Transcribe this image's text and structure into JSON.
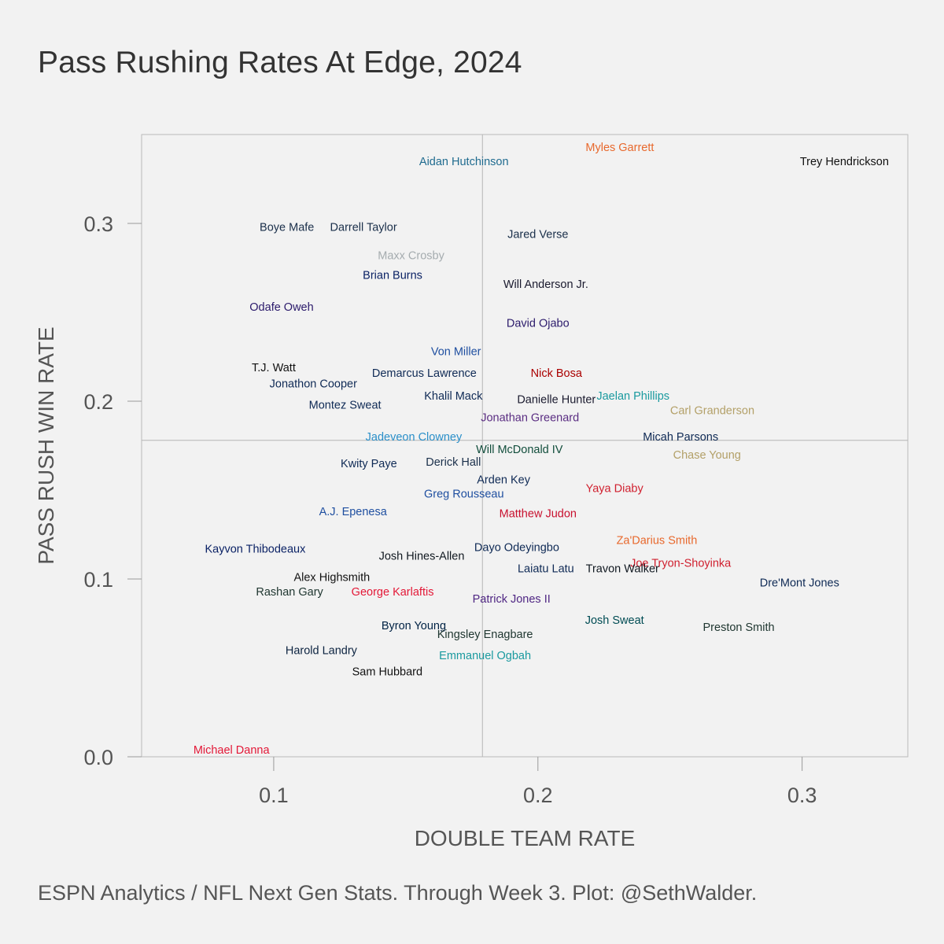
{
  "title": "Pass Rushing Rates At Edge, 2024",
  "caption": "ESPN Analytics / NFL Next Gen Stats. Through Week 3. Plot: @SethWalder.",
  "chart_data": {
    "type": "scatter",
    "title": "Pass Rushing Rates At Edge, 2024",
    "xlabel": "DOUBLE TEAM RATE",
    "ylabel": "PASS RUSH WIN RATE",
    "xlim": [
      0.05,
      0.34
    ],
    "ylim": [
      0.0,
      0.35
    ],
    "xticks": [
      0.1,
      0.2,
      0.3
    ],
    "xtick_labels": [
      "0.1",
      "0.2",
      "0.3"
    ],
    "yticks": [
      0.0,
      0.1,
      0.2,
      0.3
    ],
    "ytick_labels": [
      "0.0",
      "0.1",
      "0.2",
      "0.3"
    ],
    "reference_lines": {
      "x": 0.179,
      "y": 0.178
    },
    "grid": false,
    "points": [
      {
        "label": "Myles Garrett",
        "x": 0.231,
        "y": 0.343,
        "color": "#e8692d"
      },
      {
        "label": "Trey Hendrickson",
        "x": 0.316,
        "y": 0.335,
        "color": "#111111"
      },
      {
        "label": "Aidan Hutchinson",
        "x": 0.172,
        "y": 0.335,
        "color": "#1f6b8f"
      },
      {
        "label": "Boye Mafe",
        "x": 0.105,
        "y": 0.298,
        "color": "#1a2f4a"
      },
      {
        "label": "Darrell Taylor",
        "x": 0.134,
        "y": 0.298,
        "color": "#1a2f4a"
      },
      {
        "label": "Jared Verse",
        "x": 0.2,
        "y": 0.294,
        "color": "#1a2f4a"
      },
      {
        "label": "Maxx Crosby",
        "x": 0.152,
        "y": 0.282,
        "color": "#a5acaf"
      },
      {
        "label": "Brian Burns",
        "x": 0.145,
        "y": 0.271,
        "color": "#0b2265"
      },
      {
        "label": "Will Anderson Jr.",
        "x": 0.203,
        "y": 0.266,
        "color": "#1a1a2e"
      },
      {
        "label": "Odafe Oweh",
        "x": 0.103,
        "y": 0.253,
        "color": "#2b1a6b"
      },
      {
        "label": "David Ojabo",
        "x": 0.2,
        "y": 0.244,
        "color": "#2b1a6b"
      },
      {
        "label": "Von Miller",
        "x": 0.169,
        "y": 0.228,
        "color": "#1f4fa0"
      },
      {
        "label": "T.J. Watt",
        "x": 0.1,
        "y": 0.219,
        "color": "#111111"
      },
      {
        "label": "Demarcus Lawrence",
        "x": 0.157,
        "y": 0.216,
        "color": "#0f2a55"
      },
      {
        "label": "Nick Bosa",
        "x": 0.207,
        "y": 0.216,
        "color": "#aa0000"
      },
      {
        "label": "Jonathon Cooper",
        "x": 0.115,
        "y": 0.21,
        "color": "#0f2a55"
      },
      {
        "label": "Khalil Mack",
        "x": 0.168,
        "y": 0.203,
        "color": "#0f2a55"
      },
      {
        "label": "Danielle Hunter",
        "x": 0.207,
        "y": 0.201,
        "color": "#1a1a2e"
      },
      {
        "label": "Jaelan Phillips",
        "x": 0.236,
        "y": 0.203,
        "color": "#1a9a9f"
      },
      {
        "label": "Montez Sweat",
        "x": 0.127,
        "y": 0.198,
        "color": "#0f2a55"
      },
      {
        "label": "Carl Granderson",
        "x": 0.266,
        "y": 0.195,
        "color": "#b3a068"
      },
      {
        "label": "Jonathan Greenard",
        "x": 0.197,
        "y": 0.191,
        "color": "#5a2d82"
      },
      {
        "label": "Micah Parsons",
        "x": 0.254,
        "y": 0.18,
        "color": "#0f2a55"
      },
      {
        "label": "Jadeveon Clowney",
        "x": 0.153,
        "y": 0.18,
        "color": "#2a8fc9"
      },
      {
        "label": "Will McDonald IV",
        "x": 0.193,
        "y": 0.173,
        "color": "#124e3c"
      },
      {
        "label": "Chase Young",
        "x": 0.264,
        "y": 0.17,
        "color": "#b3a068"
      },
      {
        "label": "Kwity Paye",
        "x": 0.136,
        "y": 0.165,
        "color": "#0f2a55"
      },
      {
        "label": "Derick Hall",
        "x": 0.168,
        "y": 0.166,
        "color": "#1a2f4a"
      },
      {
        "label": "Arden Key",
        "x": 0.187,
        "y": 0.156,
        "color": "#0f2a55"
      },
      {
        "label": "Yaya Diaby",
        "x": 0.229,
        "y": 0.151,
        "color": "#d0202f"
      },
      {
        "label": "Greg Rousseau",
        "x": 0.172,
        "y": 0.148,
        "color": "#1f4fa0"
      },
      {
        "label": "A.J. Epenesa",
        "x": 0.13,
        "y": 0.138,
        "color": "#1f4fa0"
      },
      {
        "label": "Matthew Judon",
        "x": 0.2,
        "y": 0.137,
        "color": "#c8102e"
      },
      {
        "label": "Za'Darius Smith",
        "x": 0.245,
        "y": 0.122,
        "color": "#e8692d"
      },
      {
        "label": "Dayo Odeyingbo",
        "x": 0.192,
        "y": 0.118,
        "color": "#0f2a55"
      },
      {
        "label": "Kayvon Thibodeaux",
        "x": 0.093,
        "y": 0.117,
        "color": "#0b2265"
      },
      {
        "label": "Josh Hines-Allen",
        "x": 0.156,
        "y": 0.113,
        "color": "#101820"
      },
      {
        "label": "Joe Tryon-Shoyinka",
        "x": 0.254,
        "y": 0.109,
        "color": "#d0202f"
      },
      {
        "label": "Laiatu Latu",
        "x": 0.203,
        "y": 0.106,
        "color": "#0f2a55"
      },
      {
        "label": "Travon Walker",
        "x": 0.232,
        "y": 0.106,
        "color": "#101820"
      },
      {
        "label": "Dre'Mont Jones",
        "x": 0.299,
        "y": 0.098,
        "color": "#0f2a55"
      },
      {
        "label": "Alex Highsmith",
        "x": 0.122,
        "y": 0.101,
        "color": "#111111"
      },
      {
        "label": "Rashan Gary",
        "x": 0.106,
        "y": 0.093,
        "color": "#203731"
      },
      {
        "label": "George Karlaftis",
        "x": 0.145,
        "y": 0.093,
        "color": "#e31837"
      },
      {
        "label": "Patrick Jones II",
        "x": 0.19,
        "y": 0.089,
        "color": "#4f2683"
      },
      {
        "label": "Josh Sweat",
        "x": 0.229,
        "y": 0.077,
        "color": "#004c54"
      },
      {
        "label": "Byron Young",
        "x": 0.153,
        "y": 0.074,
        "color": "#002244"
      },
      {
        "label": "Preston Smith",
        "x": 0.276,
        "y": 0.073,
        "color": "#203731"
      },
      {
        "label": "Kingsley Enagbare",
        "x": 0.18,
        "y": 0.069,
        "color": "#203731"
      },
      {
        "label": "Harold Landry",
        "x": 0.118,
        "y": 0.06,
        "color": "#0c2340"
      },
      {
        "label": "Emmanuel Ogbah",
        "x": 0.18,
        "y": 0.057,
        "color": "#1a9a9f"
      },
      {
        "label": "Sam Hubbard",
        "x": 0.143,
        "y": 0.048,
        "color": "#111111"
      },
      {
        "label": "Michael Danna",
        "x": 0.084,
        "y": 0.004,
        "color": "#e31837"
      }
    ]
  }
}
